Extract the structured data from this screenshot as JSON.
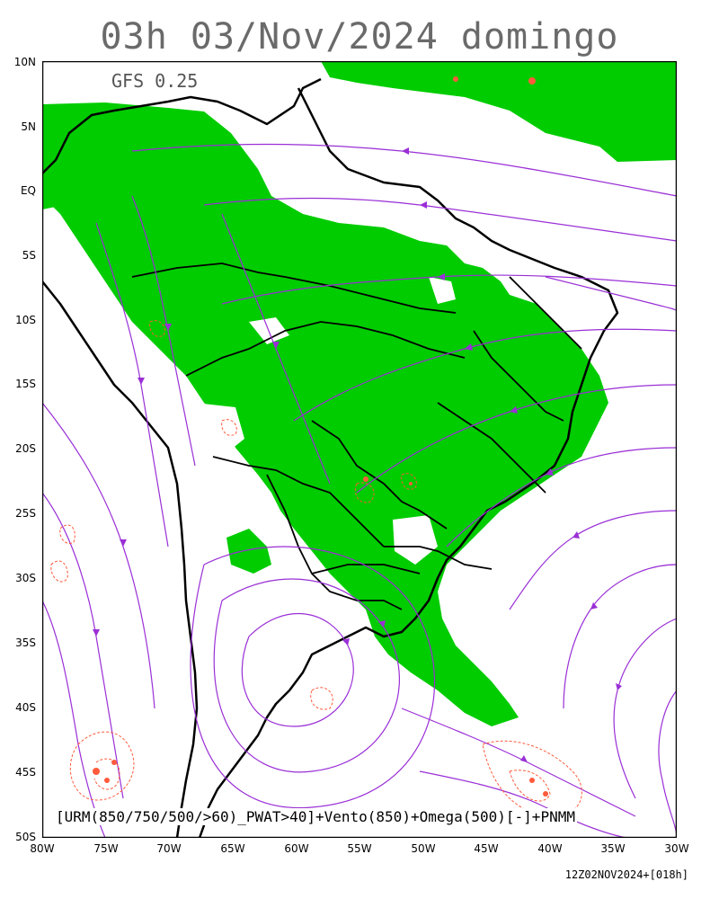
{
  "title": "03h 03/Nov/2024 domingo",
  "model": "GFS 0.25",
  "legend": "[URM(850/750/500/>60)_PWAT>40]+Vento(850)+Omega(500)[-]+PNMM",
  "run_info": "12Z02NOV2024+[018h]",
  "lat_labels": [
    "10N",
    "5N",
    "EQ",
    "5S",
    "10S",
    "15S",
    "20S",
    "25S",
    "30S",
    "35S",
    "40S",
    "45S",
    "50S"
  ],
  "lon_labels": [
    "80W",
    "75W",
    "70W",
    "65W",
    "60W",
    "55W",
    "50W",
    "45W",
    "40W",
    "35W",
    "30W"
  ],
  "colors": {
    "humidity_fill": "#00cc00",
    "streamline": "#9a2fd6",
    "omega_contour": "#ff5a3c",
    "coastline": "#000000"
  }
}
